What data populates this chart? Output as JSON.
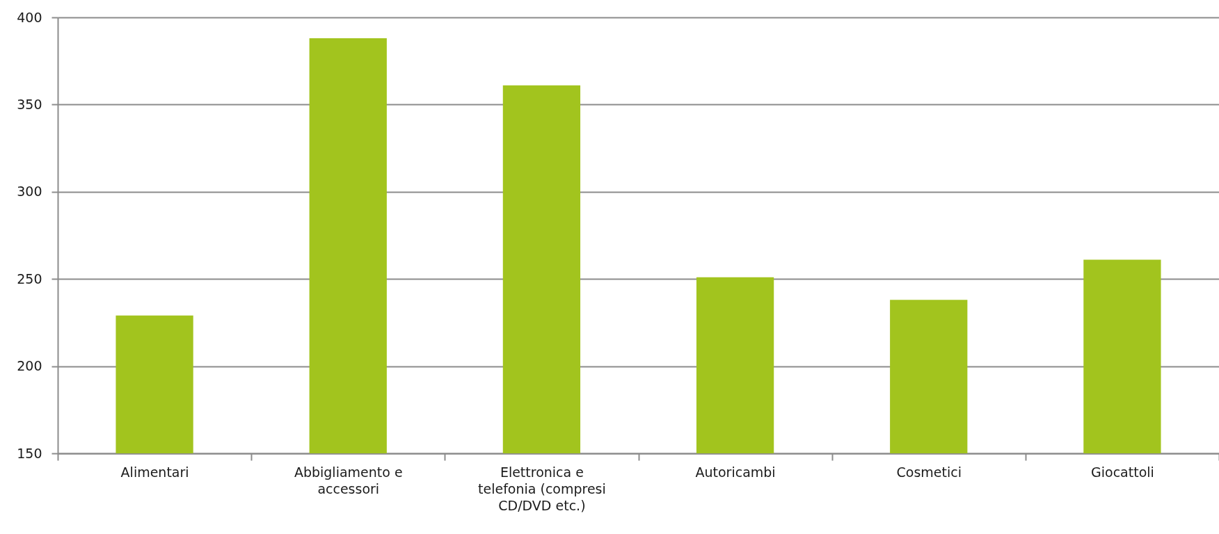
{
  "chart_data": {
    "type": "bar",
    "categories": [
      "Alimentari",
      "Abbigliamento e accessori",
      "Elettronica e telefonia (compresi CD/DVD etc.)",
      "Autoricambi",
      "Cosmetici",
      "Giocattoli"
    ],
    "values": [
      229,
      388,
      361,
      251,
      238,
      261
    ],
    "color": "#a2c41e",
    "ylim": [
      150,
      400
    ],
    "yticks": [
      150,
      200,
      250,
      300,
      350,
      400
    ],
    "grid": "y"
  }
}
